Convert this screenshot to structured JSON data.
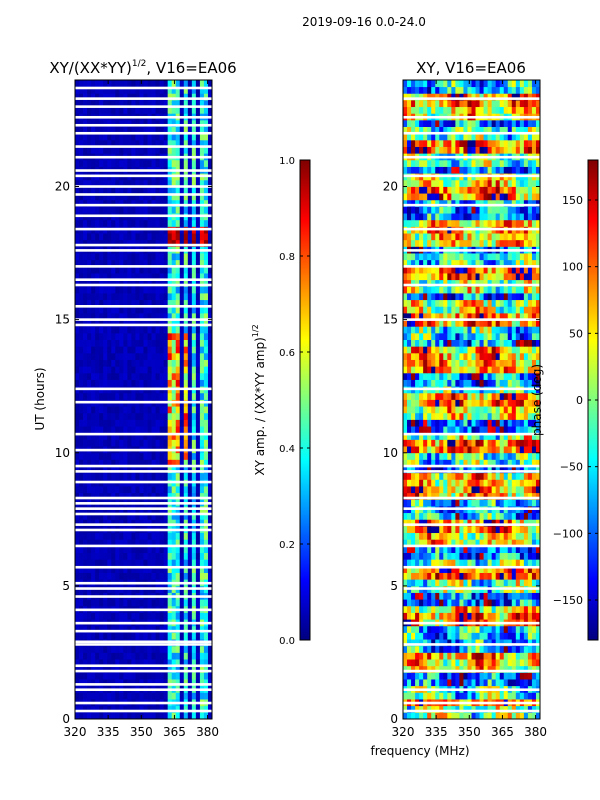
{
  "figure_title": "2019-09-16 0.0-24.0",
  "xlabel_shared": "frequency (MHz)",
  "colors": {
    "jet": [
      "#00007f",
      "#0000ff",
      "#007fff",
      "#00ffff",
      "#7fff7f",
      "#ffff00",
      "#ff7f00",
      "#ff0000",
      "#7f0000"
    ],
    "flag": "#ffffff"
  },
  "chart_data": [
    {
      "type": "heatmap",
      "title_main": "XY/(XX*YY)",
      "title_exp": "1/2",
      "title_rest": ", V16=EA06",
      "ylabel": "UT (hours)",
      "xlim": [
        320,
        382
      ],
      "ylim": [
        0,
        24
      ],
      "xticks": [
        "320",
        "335",
        "350",
        "365",
        "380"
      ],
      "xtick_values": [
        320,
        335,
        350,
        365,
        380
      ],
      "yticks": [
        "0",
        "5",
        "10",
        "15",
        "20"
      ],
      "ytick_values": [
        0,
        5,
        10,
        15,
        20
      ],
      "colorbar": {
        "label_main": "XY amp. / (XX*YY amp)",
        "label_exp": "1/2",
        "range": [
          0.0,
          1.0
        ],
        "ticks": [
          "0.0",
          "0.2",
          "0.4",
          "0.6",
          "0.8",
          "1.0"
        ],
        "tick_values": [
          0.0,
          0.2,
          0.4,
          0.6,
          0.8,
          1.0
        ]
      },
      "flagged_hours": [
        0.3,
        0.6,
        1.1,
        1.3,
        1.8,
        2.0,
        2.8,
        2.9,
        3.3,
        3.6,
        4.1,
        4.6,
        4.9,
        5.1,
        5.7,
        6.5,
        7.1,
        7.3,
        7.7,
        7.9,
        8.1,
        8.3,
        8.9,
        9.3,
        9.5,
        10.1,
        10.7,
        11.9,
        12.4,
        14.8,
        15.0,
        15.5,
        16.3,
        16.5,
        17.0,
        17.6,
        17.8,
        18.4,
        18.9,
        19.3,
        19.7,
        20.0,
        20.4,
        20.6,
        21.1,
        21.5,
        22.0,
        22.3,
        22.6,
        23.0,
        23.3,
        23.7
      ],
      "feature_channels_mhz": [
        363,
        366,
        370,
        374,
        378
      ]
    },
    {
      "type": "heatmap",
      "title": "XY, V16=EA06",
      "xlim": [
        320,
        382
      ],
      "ylim": [
        0,
        24
      ],
      "xticks": [
        "320",
        "335",
        "350",
        "365",
        "380"
      ],
      "xtick_values": [
        320,
        335,
        350,
        365,
        380
      ],
      "yticks": [
        "0",
        "5",
        "10",
        "15",
        "20"
      ],
      "ytick_values": [
        0,
        5,
        10,
        15,
        20
      ],
      "colorbar": {
        "label": "phase (deg)",
        "range": [
          -180,
          180
        ],
        "ticks": [
          "−150",
          "−100",
          "−50",
          "0",
          "50",
          "100",
          "150"
        ],
        "tick_values": [
          -150,
          -100,
          -50,
          0,
          50,
          100,
          150
        ]
      },
      "flagged_hours": [
        0.3,
        0.6,
        1.1,
        1.8,
        2.8,
        3.6,
        4.9,
        5.7,
        6.5,
        7.3,
        7.9,
        8.3,
        9.3,
        9.5,
        10.7,
        12.4,
        15.0,
        16.3,
        17.0,
        17.6,
        18.4,
        19.3,
        20.4,
        21.1,
        22.0,
        22.6,
        23.3
      ]
    }
  ]
}
